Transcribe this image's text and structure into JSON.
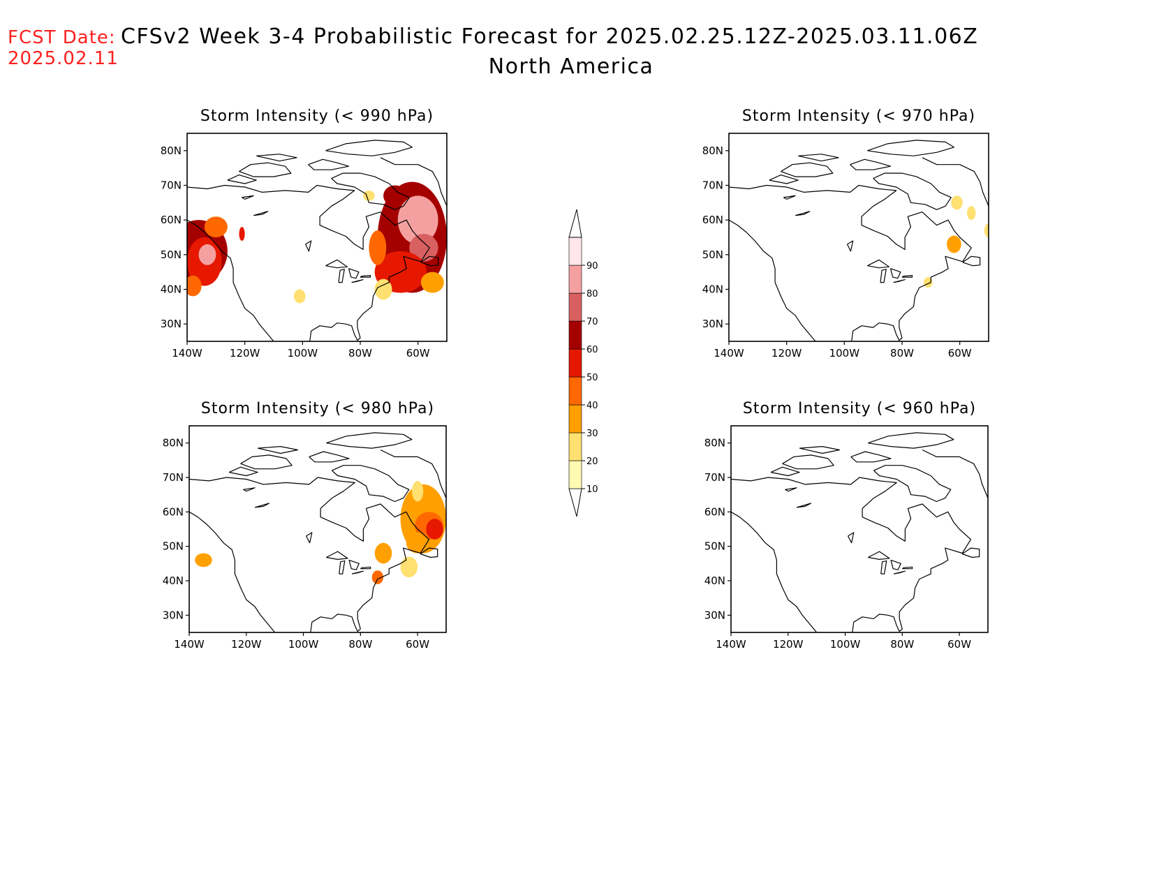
{
  "header": {
    "forecast_date_label": "FCST Date:",
    "forecast_date_value": "2025.02.11",
    "title_line1": "CFSv2 Week 3-4 Probabilistic Forecast for 2025.02.25.12Z-2025.03.11.06Z",
    "title_line2": "North America"
  },
  "axes": {
    "lat_ticks": [
      "80N",
      "70N",
      "60N",
      "50N",
      "40N",
      "30N"
    ],
    "lon_ticks": [
      "140W",
      "120W",
      "100W",
      "80W",
      "60W"
    ]
  },
  "panels": [
    {
      "id": "p990",
      "title": "Storm Intensity (< 990 hPa)",
      "blobs": [
        {
          "lon": -136,
          "lat": 51,
          "rx": 10,
          "ry": 9,
          "level": 6
        },
        {
          "lon": -134,
          "lat": 48,
          "rx": 6,
          "ry": 7,
          "level": 5
        },
        {
          "lon": -133,
          "lat": 50,
          "rx": 3,
          "ry": 3,
          "level": 8
        },
        {
          "lon": -130,
          "lat": 58,
          "rx": 4,
          "ry": 3,
          "level": 4
        },
        {
          "lon": -138,
          "lat": 41,
          "rx": 3,
          "ry": 3,
          "level": 4
        },
        {
          "lon": -121,
          "lat": 56,
          "rx": 1,
          "ry": 2,
          "level": 5
        },
        {
          "lon": -101,
          "lat": 38,
          "rx": 2,
          "ry": 2,
          "level": 2
        },
        {
          "lon": -62,
          "lat": 55,
          "rx": 12,
          "ry": 16,
          "level": 6
        },
        {
          "lon": -60,
          "lat": 60,
          "rx": 7,
          "ry": 7,
          "level": 8
        },
        {
          "lon": -58,
          "lat": 52,
          "rx": 5,
          "ry": 4,
          "level": 7
        },
        {
          "lon": -66,
          "lat": 45,
          "rx": 9,
          "ry": 6,
          "level": 5
        },
        {
          "lon": -68,
          "lat": 67,
          "rx": 4,
          "ry": 3,
          "level": 6
        },
        {
          "lon": -74,
          "lat": 52,
          "rx": 3,
          "ry": 5,
          "level": 4
        },
        {
          "lon": -55,
          "lat": 42,
          "rx": 4,
          "ry": 3,
          "level": 3
        },
        {
          "lon": -72,
          "lat": 40,
          "rx": 3,
          "ry": 3,
          "level": 2
        },
        {
          "lon": -77,
          "lat": 67,
          "rx": 2,
          "ry": 1.5,
          "level": 2
        }
      ]
    },
    {
      "id": "p970",
      "title": "Storm Intensity (< 970 hPa)",
      "blobs": [
        {
          "lon": -61,
          "lat": 65,
          "rx": 2,
          "ry": 2,
          "level": 2
        },
        {
          "lon": -62,
          "lat": 53,
          "rx": 2.5,
          "ry": 2.5,
          "level": 3
        },
        {
          "lon": -56,
          "lat": 62,
          "rx": 1.5,
          "ry": 2,
          "level": 2
        },
        {
          "lon": -50,
          "lat": 57,
          "rx": 1.5,
          "ry": 2,
          "level": 2
        },
        {
          "lon": -71,
          "lat": 42,
          "rx": 1.5,
          "ry": 1.5,
          "level": 2
        }
      ]
    },
    {
      "id": "p980",
      "title": "Storm Intensity (< 980 hPa)",
      "blobs": [
        {
          "lon": -58,
          "lat": 58,
          "rx": 8,
          "ry": 10,
          "level": 3
        },
        {
          "lon": -56,
          "lat": 56,
          "rx": 5,
          "ry": 4,
          "level": 4
        },
        {
          "lon": -54,
          "lat": 55,
          "rx": 3,
          "ry": 3,
          "level": 5
        },
        {
          "lon": -60,
          "lat": 51,
          "rx": 4,
          "ry": 3,
          "level": 3
        },
        {
          "lon": -60,
          "lat": 66,
          "rx": 2,
          "ry": 3,
          "level": 2
        },
        {
          "lon": -72,
          "lat": 48,
          "rx": 3,
          "ry": 3,
          "level": 3
        },
        {
          "lon": -74,
          "lat": 41,
          "rx": 2,
          "ry": 2,
          "level": 4
        },
        {
          "lon": -135,
          "lat": 46,
          "rx": 3,
          "ry": 2,
          "level": 3
        },
        {
          "lon": -63,
          "lat": 44,
          "rx": 3,
          "ry": 3,
          "level": 2
        }
      ]
    },
    {
      "id": "p960",
      "title": "Storm Intensity (< 960 hPa)",
      "blobs": []
    }
  ],
  "colorbar": {
    "labels": [
      "10",
      "20",
      "30",
      "40",
      "50",
      "60",
      "70",
      "80",
      "90"
    ],
    "colors": [
      "#fff9b3",
      "#ffe070",
      "#ffa000",
      "#ff6800",
      "#e61800",
      "#a50000",
      "#d96060",
      "#f4a0a0",
      "#ffe6ea"
    ]
  }
}
